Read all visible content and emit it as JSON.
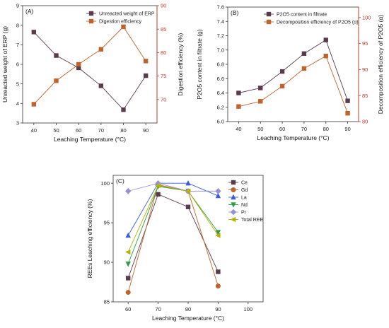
{
  "colors": {
    "left_axis": "#555555",
    "right_axis": "#c0392b",
    "series_a1": "#5b3a4e",
    "series_a2": "#c0622b",
    "series_b1": "#5b3a4e",
    "series_b2": "#c0622b",
    "ce": "#5b3a4e",
    "gd": "#c0622b",
    "la": "#3b5bdb",
    "nd": "#2f9e44",
    "pr": "#9b8ed9",
    "total": "#b7b200"
  },
  "chart_data": [
    {
      "type": "line",
      "panel_label": "(A)",
      "x": [
        40,
        50,
        60,
        70,
        80,
        90
      ],
      "xlabel": "Leaching Temperature (°C)",
      "ylabel": "Unreacted weight of ERP (g)",
      "ylabel2": "Digestion efficiency (%)",
      "xlim": [
        35,
        95
      ],
      "ylim": [
        3,
        9
      ],
      "ylim2": [
        65,
        90
      ],
      "xticks": [
        "40",
        "50",
        "60",
        "70",
        "80",
        "90"
      ],
      "yticks": [
        "3",
        "4",
        "5",
        "6",
        "7",
        "8",
        "9"
      ],
      "yticks2": [
        "70",
        "75",
        "80",
        "85",
        "90"
      ],
      "legend_position": "top-right",
      "series": [
        {
          "name": "Unreacted weight of ERP",
          "axis": "left",
          "marker": "square",
          "values": [
            7.65,
            6.45,
            5.82,
            4.9,
            3.68,
            5.42
          ]
        },
        {
          "name": "Digestion efficiency",
          "axis": "right",
          "marker": "square",
          "values": [
            69.0,
            74.0,
            77.5,
            80.7,
            85.5,
            78.2
          ]
        }
      ]
    },
    {
      "type": "line",
      "panel_label": "(B)",
      "x": [
        40,
        50,
        60,
        70,
        80,
        90
      ],
      "xlabel": "Leaching Temperature (°C)",
      "ylabel": "P2O5 content in filtrate (g)",
      "ylabel2": "Decomposition efficiency of P2O5 (α)",
      "xlim": [
        35,
        95
      ],
      "ylim": [
        6.0,
        7.6
      ],
      "ylim2": [
        80,
        102
      ],
      "xticks": [
        "40",
        "50",
        "60",
        "70",
        "80",
        "90"
      ],
      "yticks": [
        "6.0",
        "6.2",
        "6.4",
        "6.6",
        "6.8",
        "7.0",
        "7.2",
        "7.4",
        "7.6"
      ],
      "yticks2": [
        "80",
        "85",
        "90",
        "95",
        "100"
      ],
      "legend_position": "top-left",
      "series": [
        {
          "name": "P2O5 content in filtrate",
          "axis": "left",
          "marker": "square",
          "values": [
            6.4,
            6.47,
            6.7,
            6.95,
            7.14,
            6.29
          ]
        },
        {
          "name": "Decomposition efficiency of P2O5 (α)",
          "axis": "right",
          "marker": "square",
          "values": [
            82.9,
            83.9,
            86.8,
            90.2,
            92.6,
            81.6
          ]
        }
      ]
    },
    {
      "type": "line",
      "panel_label": "(C)",
      "x": [
        60,
        70,
        80,
        90
      ],
      "xlabel": "Leaching Temperature (°C)",
      "ylabel": "REEs Leaching efficiency (%)",
      "xlim": [
        55,
        105
      ],
      "ylim": [
        85,
        101
      ],
      "xticks": [
        "60",
        "70",
        "80",
        "90",
        "100"
      ],
      "yticks": [
        "85",
        "90",
        "95",
        "100"
      ],
      "legend_position": "top-right",
      "series": [
        {
          "name": "Ce",
          "marker": "square",
          "values": [
            88.0,
            98.6,
            97.0,
            88.8
          ]
        },
        {
          "name": "Gd",
          "marker": "circle",
          "values": [
            86.2,
            99.8,
            99.0,
            87.0
          ]
        },
        {
          "name": "La",
          "marker": "triangle-up",
          "values": [
            93.4,
            100.0,
            100.0,
            98.4
          ]
        },
        {
          "name": "Nd",
          "marker": "triangle-down",
          "values": [
            89.8,
            99.6,
            99.0,
            93.8
          ]
        },
        {
          "name": "Pr",
          "marker": "diamond",
          "values": [
            99.0,
            100.0,
            99.0,
            99.0
          ]
        },
        {
          "name": "Total REE",
          "marker": "triangle-left",
          "values": [
            91.3,
            99.7,
            99.0,
            93.4
          ]
        }
      ]
    }
  ]
}
